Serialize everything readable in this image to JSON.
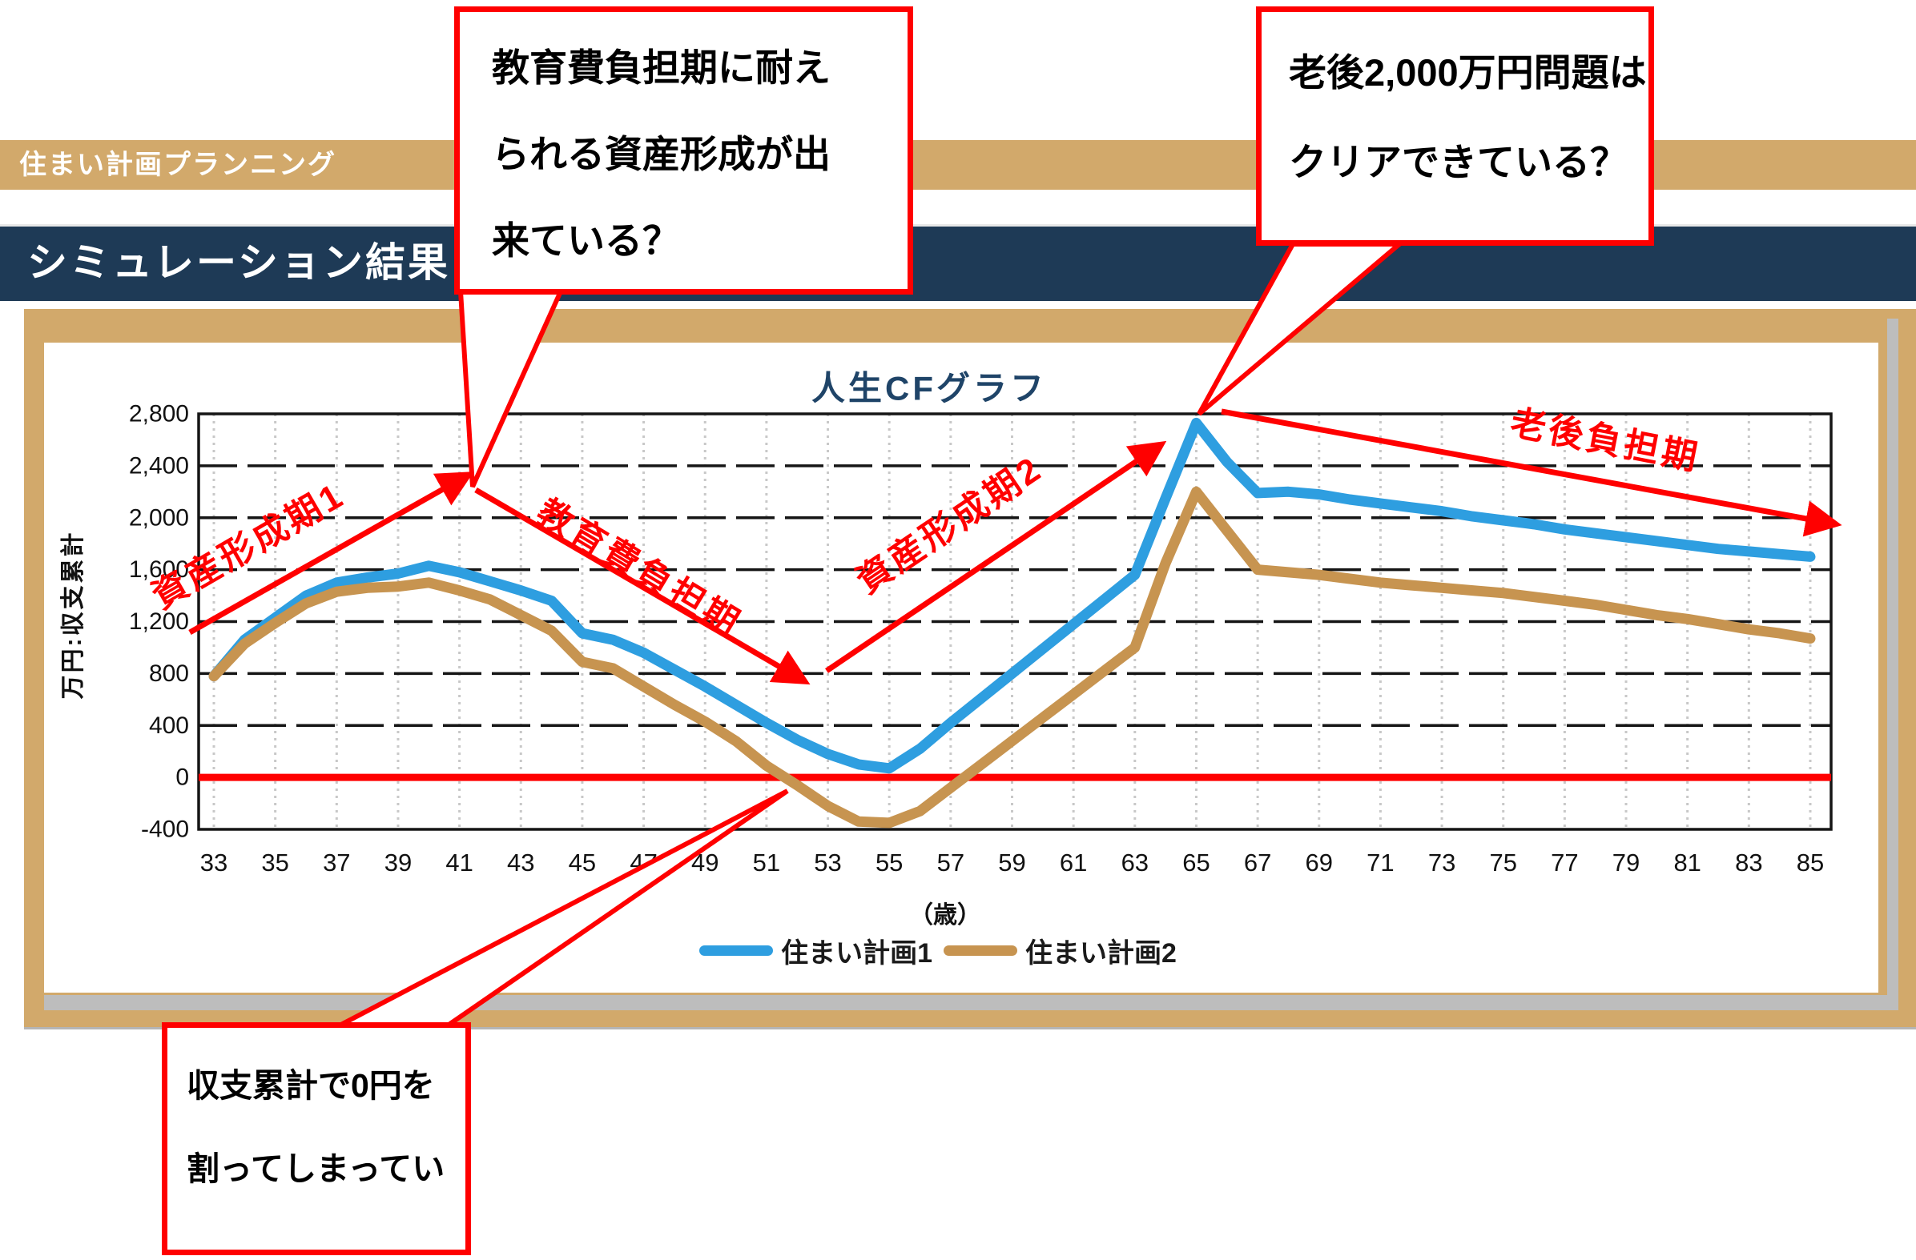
{
  "header": {
    "top_bar_title": "住まい計画プランニング",
    "section_title": "シミュレーション結果"
  },
  "callouts": {
    "education": {
      "lines": [
        "教育費負担期に耐え",
        "られる資産形成が出",
        "来ている？"
      ]
    },
    "retirement": {
      "lines": [
        "老後2,000万円問題は",
        "クリアできている？"
      ]
    },
    "below_zero": {
      "lines": [
        "収支累計で0円を",
        "割ってしまってい"
      ]
    }
  },
  "colors": {
    "accent_red": "#FF0000",
    "bar_tan": "#D2A96B",
    "bar_navy": "#1E3A56",
    "title_navy": "#1F4468",
    "shadow_gray": "#BDBDBD",
    "plan1_blue": "#2E9EE0",
    "plan2_tan": "#C79450"
  },
  "chart_data": {
    "type": "line",
    "title": "人生CFグラフ",
    "ylabel": "万円:収支累計",
    "xlabel": "（歳）",
    "x_start": 33,
    "x_end": 85,
    "x_tick_labels": [
      33,
      35,
      37,
      39,
      41,
      43,
      45,
      47,
      49,
      51,
      53,
      55,
      57,
      59,
      61,
      63,
      65,
      67,
      69,
      71,
      73,
      75,
      77,
      79,
      81,
      83,
      85
    ],
    "yticks": [
      2800,
      2400,
      2000,
      1600,
      1200,
      800,
      400,
      0,
      -400
    ],
    "ytick_labels": [
      "2,800",
      "2,400",
      "2,000",
      "1,600",
      "1,200",
      "800",
      "400",
      "0",
      "-400"
    ],
    "ylim": [
      -400,
      2800
    ],
    "grid": true,
    "legend_position": "bottom",
    "zero_line": {
      "value": 0,
      "color": "#FF0000"
    },
    "series": [
      {
        "name": "住まい計画1",
        "color": "#2E9EE0",
        "values": [
          780,
          1060,
          1230,
          1400,
          1500,
          1540,
          1570,
          1630,
          1580,
          1510,
          1440,
          1360,
          1110,
          1060,
          960,
          830,
          700,
          560,
          420,
          290,
          180,
          100,
          70,
          220,
          420,
          610,
          800,
          990,
          1180,
          1370,
          1560,
          2150,
          2730,
          2430,
          2190,
          2200,
          2180,
          2140,
          2110,
          2080,
          2050,
          2010,
          1980,
          1950,
          1910,
          1880,
          1850,
          1820,
          1790,
          1760,
          1740,
          1720,
          1700
        ]
      },
      {
        "name": "住まい計画2",
        "color": "#C79450",
        "values": [
          780,
          1030,
          1190,
          1340,
          1430,
          1460,
          1470,
          1500,
          1440,
          1370,
          1250,
          1130,
          890,
          840,
          700,
          560,
          430,
          280,
          90,
          -60,
          -220,
          -340,
          -350,
          -260,
          -80,
          100,
          280,
          460,
          640,
          820,
          1000,
          1650,
          2200,
          1900,
          1600,
          1580,
          1560,
          1530,
          1500,
          1480,
          1460,
          1440,
          1420,
          1390,
          1360,
          1330,
          1290,
          1250,
          1220,
          1180,
          1140,
          1110,
          1070
        ]
      }
    ],
    "period_annotations": [
      {
        "label": "資産形成期1"
      },
      {
        "label": "教育費負担期"
      },
      {
        "label": "資産形成期2"
      },
      {
        "label": "老後負担期"
      }
    ]
  }
}
